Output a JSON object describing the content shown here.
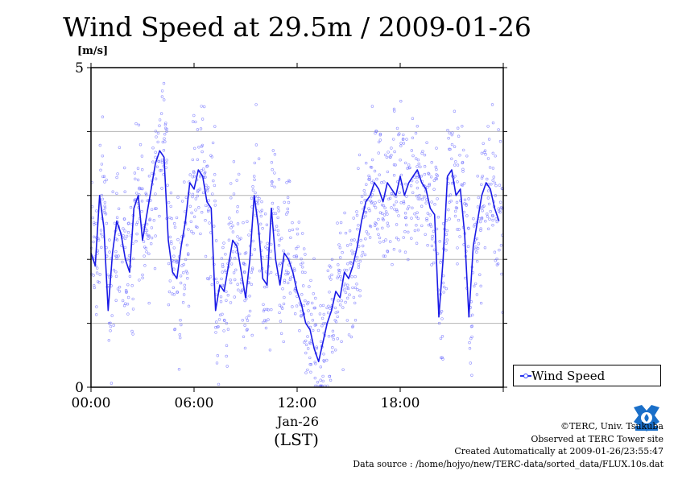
{
  "title": "Wind Speed at 29.5m / 2009-01-26",
  "y_unit": "[m/s]",
  "x_date_label": "Jan-26",
  "x_unit_label": "(LST)",
  "legend": {
    "label": "Wind Speed"
  },
  "credits": {
    "copyright": "©TERC, Univ. Tsukuba",
    "observed": "Observed at TERC Tower site",
    "created": "Created Automatically at 2009-01-26/23:55:47",
    "source": "Data source : /home/hojyo/new/TERC-data/sorted_data/FLUX.10s.dat"
  },
  "colors": {
    "line": "#1a1ae6",
    "scatter": "#6a6aff",
    "grid": "#b4b4b4",
    "logo": "#1a6fc9"
  },
  "icons": {
    "logo": "terc-logo-icon"
  },
  "chart_data": {
    "type": "line",
    "title": "Wind Speed at 29.5m / 2009-01-26",
    "ylabel": "[m/s]",
    "xlabel": "(LST)",
    "ylim": [
      0,
      5
    ],
    "xlim": [
      0,
      24
    ],
    "y_ticks": [
      "0",
      "5"
    ],
    "x_ticks": [
      "00:00",
      "06:00",
      "12:00",
      "18:00"
    ],
    "grid": "horizontal",
    "legend_position": "right-bottom",
    "series": [
      {
        "name": "Wind Speed",
        "x": [
          0.0,
          0.25,
          0.5,
          0.75,
          1.0,
          1.25,
          1.5,
          1.75,
          2.0,
          2.25,
          2.5,
          2.75,
          3.0,
          3.25,
          3.5,
          3.75,
          4.0,
          4.25,
          4.5,
          4.75,
          5.0,
          5.25,
          5.5,
          5.75,
          6.0,
          6.25,
          6.5,
          6.75,
          7.0,
          7.25,
          7.5,
          7.75,
          8.0,
          8.25,
          8.5,
          8.75,
          9.0,
          9.25,
          9.5,
          9.75,
          10.0,
          10.25,
          10.5,
          10.75,
          11.0,
          11.25,
          11.5,
          11.75,
          12.0,
          12.25,
          12.5,
          12.75,
          13.0,
          13.25,
          13.5,
          13.75,
          14.0,
          14.25,
          14.5,
          14.75,
          15.0,
          15.25,
          15.5,
          15.75,
          16.0,
          16.25,
          16.5,
          16.75,
          17.0,
          17.25,
          17.5,
          17.75,
          18.0,
          18.25,
          18.5,
          18.75,
          19.0,
          19.25,
          19.5,
          19.75,
          20.0,
          20.25,
          20.5,
          20.75,
          21.0,
          21.25,
          21.5,
          21.75,
          22.0,
          22.25,
          22.5,
          22.75,
          23.0,
          23.25,
          23.5,
          23.75
        ],
        "values": [
          2.1,
          1.9,
          3.0,
          2.5,
          1.2,
          2.1,
          2.6,
          2.4,
          2.0,
          1.8,
          2.8,
          3.0,
          2.3,
          2.7,
          3.1,
          3.5,
          3.7,
          3.6,
          2.3,
          1.8,
          1.7,
          2.2,
          2.6,
          3.2,
          3.1,
          3.4,
          3.3,
          2.9,
          2.8,
          1.2,
          1.6,
          1.5,
          1.9,
          2.3,
          2.2,
          1.8,
          1.4,
          2.0,
          3.0,
          2.5,
          1.7,
          1.6,
          2.8,
          2.0,
          1.6,
          2.1,
          2.0,
          1.8,
          1.5,
          1.3,
          1.0,
          0.9,
          0.6,
          0.4,
          0.7,
          1.0,
          1.2,
          1.5,
          1.4,
          1.8,
          1.7,
          1.9,
          2.2,
          2.6,
          2.9,
          3.0,
          3.2,
          3.1,
          2.9,
          3.2,
          3.1,
          3.0,
          3.3,
          3.0,
          3.2,
          3.3,
          3.4,
          3.2,
          3.1,
          2.8,
          2.7,
          1.1,
          2.0,
          3.3,
          3.4,
          3.0,
          3.1,
          2.4,
          1.1,
          2.2,
          2.6,
          3.0,
          3.2,
          3.1,
          2.8,
          2.6
        ]
      }
    ]
  }
}
